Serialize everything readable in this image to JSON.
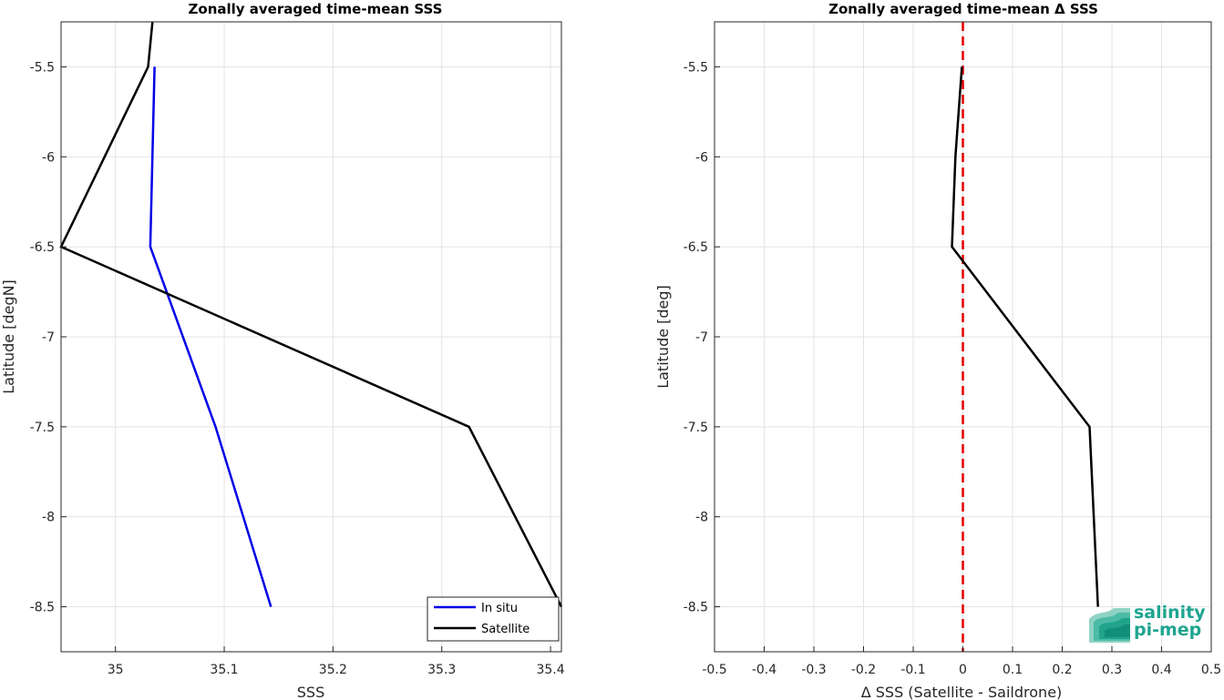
{
  "colors": {
    "in_situ": "#0000e6",
    "satellite": "#000000",
    "zero_line": "#e60000",
    "logo": "#1fa58f",
    "grid": "#e3e3e3"
  },
  "logo": {
    "line1": "salinity",
    "line2": "pi-mep",
    "icon": "wave-layers-icon"
  },
  "chart_data": [
    {
      "type": "line",
      "title": "Zonally averaged time-mean SSS",
      "xlabel": "SSS",
      "ylabel": "Latitude [degN]",
      "xlim": [
        34.95,
        35.41
      ],
      "ylim": [
        -8.75,
        -5.25
      ],
      "xticks": [
        35,
        35.1,
        35.2,
        35.3,
        35.4
      ],
      "xtick_labels": [
        "35",
        "35.1",
        "35.2",
        "35.3",
        "35.4"
      ],
      "yticks": [
        -5.5,
        -6,
        -6.5,
        -7,
        -7.5,
        -8,
        -8.5
      ],
      "ytick_labels": [
        "-5.5",
        "-6",
        "-6.5",
        "-7",
        "-7.5",
        "-8",
        "-8.5"
      ],
      "grid": true,
      "legend": "bottom-right",
      "series": [
        {
          "name": "In situ",
          "color": "#0000e6",
          "x": [
            35.036,
            35.032,
            35.092,
            35.143
          ],
          "y": [
            -5.5,
            -6.5,
            -7.5,
            -8.5
          ]
        },
        {
          "name": "Satellite",
          "color": "#000000",
          "x": [
            35.034,
            35.03,
            34.95,
            35.325,
            35.41
          ],
          "y": [
            -5.25,
            -5.5,
            -6.5,
            -7.5,
            -8.5
          ]
        }
      ]
    },
    {
      "type": "line",
      "title": "Zonally averaged time-mean Δ SSS",
      "xlabel": "Δ SSS (Satellite - Saildrone)",
      "ylabel": "Latitude [deg]",
      "xlim": [
        -0.5,
        0.5
      ],
      "ylim": [
        -8.75,
        -5.25
      ],
      "xticks": [
        -0.5,
        -0.4,
        -0.3,
        -0.2,
        -0.1,
        0,
        0.1,
        0.2,
        0.3,
        0.4,
        0.5
      ],
      "xtick_labels": [
        "-0.5",
        "-0.4",
        "-0.3",
        "-0.2",
        "-0.1",
        "0",
        "0.1",
        "0.2",
        "0.3",
        "0.4",
        "0.5"
      ],
      "yticks": [
        -5.5,
        -6,
        -6.5,
        -7,
        -7.5,
        -8,
        -8.5
      ],
      "ytick_labels": [
        "-5.5",
        "-6",
        "-6.5",
        "-7",
        "-7.5",
        "-8",
        "-8.5"
      ],
      "grid": true,
      "series": [
        {
          "color": "#000000",
          "x": [
            -0.002,
            -0.015,
            -0.022,
            0.255,
            0.272
          ],
          "y": [
            -5.5,
            -6.0,
            -6.5,
            -7.5,
            -8.5
          ]
        }
      ],
      "reference_line": {
        "x": 0,
        "style": "dashed",
        "color": "#e60000"
      }
    }
  ]
}
